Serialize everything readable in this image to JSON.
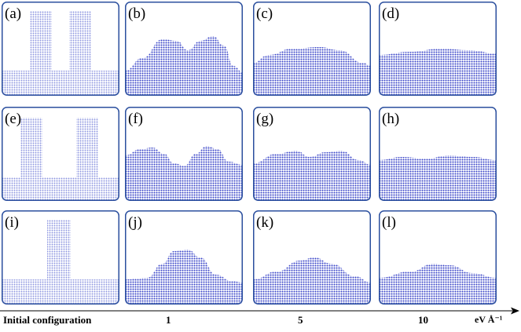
{
  "panels": [
    {
      "label": "(a)",
      "row": 0,
      "col": 0,
      "kind": "initial-two-pillars"
    },
    {
      "label": "(b)",
      "row": 0,
      "col": 1,
      "kind": "two-bumps-high"
    },
    {
      "label": "(c)",
      "row": 0,
      "col": 2,
      "kind": "broad-mound"
    },
    {
      "label": "(d)",
      "row": 0,
      "col": 3,
      "kind": "near-flat"
    },
    {
      "label": "(e)",
      "row": 1,
      "col": 0,
      "kind": "initial-two-pillars-wide"
    },
    {
      "label": "(f)",
      "row": 1,
      "col": 1,
      "kind": "two-bumps-separated"
    },
    {
      "label": "(g)",
      "row": 1,
      "col": 2,
      "kind": "two-bumps-low"
    },
    {
      "label": "(h)",
      "row": 1,
      "col": 3,
      "kind": "near-flat-wavy"
    },
    {
      "label": "(i)",
      "row": 2,
      "col": 0,
      "kind": "initial-one-pillar"
    },
    {
      "label": "(j)",
      "row": 2,
      "col": 1,
      "kind": "single-bump-high"
    },
    {
      "label": "(k)",
      "row": 2,
      "col": 2,
      "kind": "single-bump-mid"
    },
    {
      "label": "(l)",
      "row": 2,
      "col": 3,
      "kind": "single-bump-low"
    }
  ],
  "axis": {
    "ticks": [
      "Initial configuration",
      "1",
      "5",
      "10"
    ],
    "unit": "eV Å⁻¹"
  },
  "colors": {
    "frame": "#2b4f9e",
    "atom_dot": "#3a45c8",
    "atom_light": "#b9bff0",
    "label": "#000000"
  }
}
